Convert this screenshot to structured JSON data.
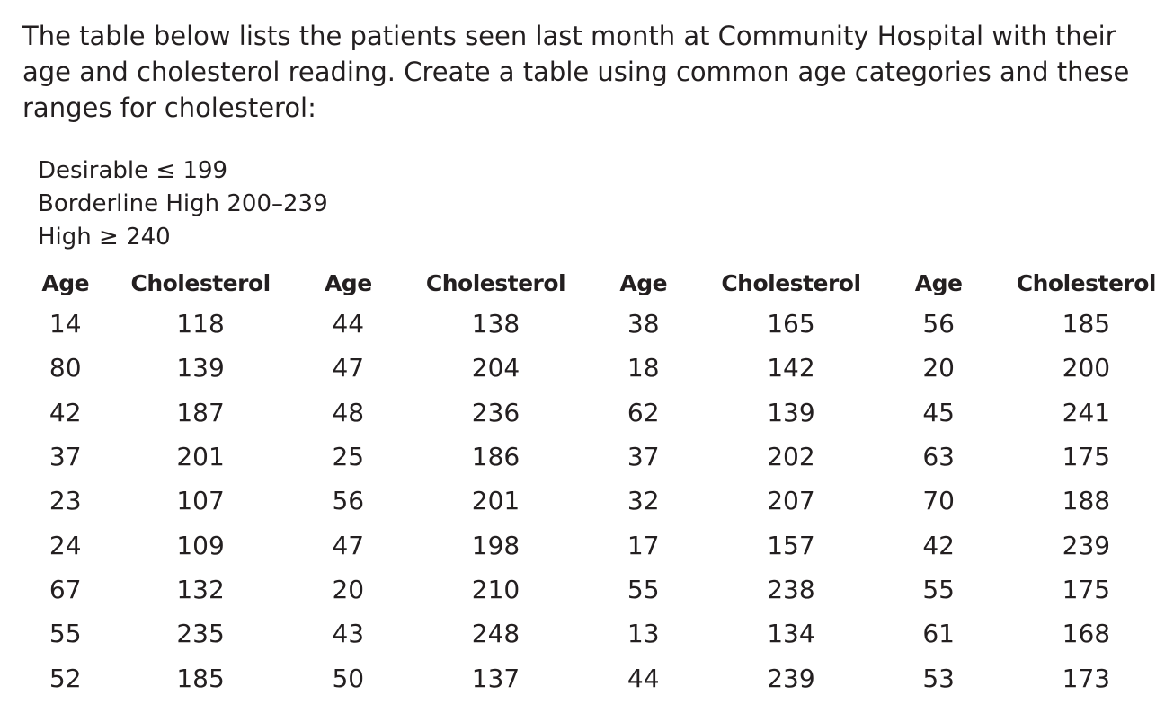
{
  "intro": {
    "line1": "The table below lists the patients seen last month at Community Hospital with their",
    "line2": "age and cholesterol reading. Create a table using common age categories and these",
    "line3": "ranges for cholesterol:"
  },
  "ranges": [
    "Desirable ≤ 199",
    "Borderline High 200–239",
    "High ≥ 240"
  ],
  "table": {
    "headers": [
      "Age",
      "Cholesterol",
      "Age",
      "Cholesterol",
      "Age",
      "Cholesterol",
      "Age",
      "Cholesterol"
    ],
    "rows": [
      [
        "14",
        "118",
        "44",
        "138",
        "38",
        "165",
        "56",
        "185"
      ],
      [
        "80",
        "139",
        "47",
        "204",
        "18",
        "142",
        "20",
        "200"
      ],
      [
        "42",
        "187",
        "48",
        "236",
        "62",
        "139",
        "45",
        "241"
      ],
      [
        "37",
        "201",
        "25",
        "186",
        "37",
        "202",
        "63",
        "175"
      ],
      [
        "23",
        "107",
        "56",
        "201",
        "32",
        "207",
        "70",
        "188"
      ],
      [
        "24",
        "109",
        "47",
        "198",
        "17",
        "157",
        "42",
        "239"
      ],
      [
        "67",
        "132",
        "20",
        "210",
        "55",
        "238",
        "55",
        "175"
      ],
      [
        "55",
        "235",
        "43",
        "248",
        "13",
        "134",
        "61",
        "168"
      ],
      [
        "52",
        "185",
        "50",
        "137",
        "44",
        "239",
        "53",
        "173"
      ]
    ]
  }
}
